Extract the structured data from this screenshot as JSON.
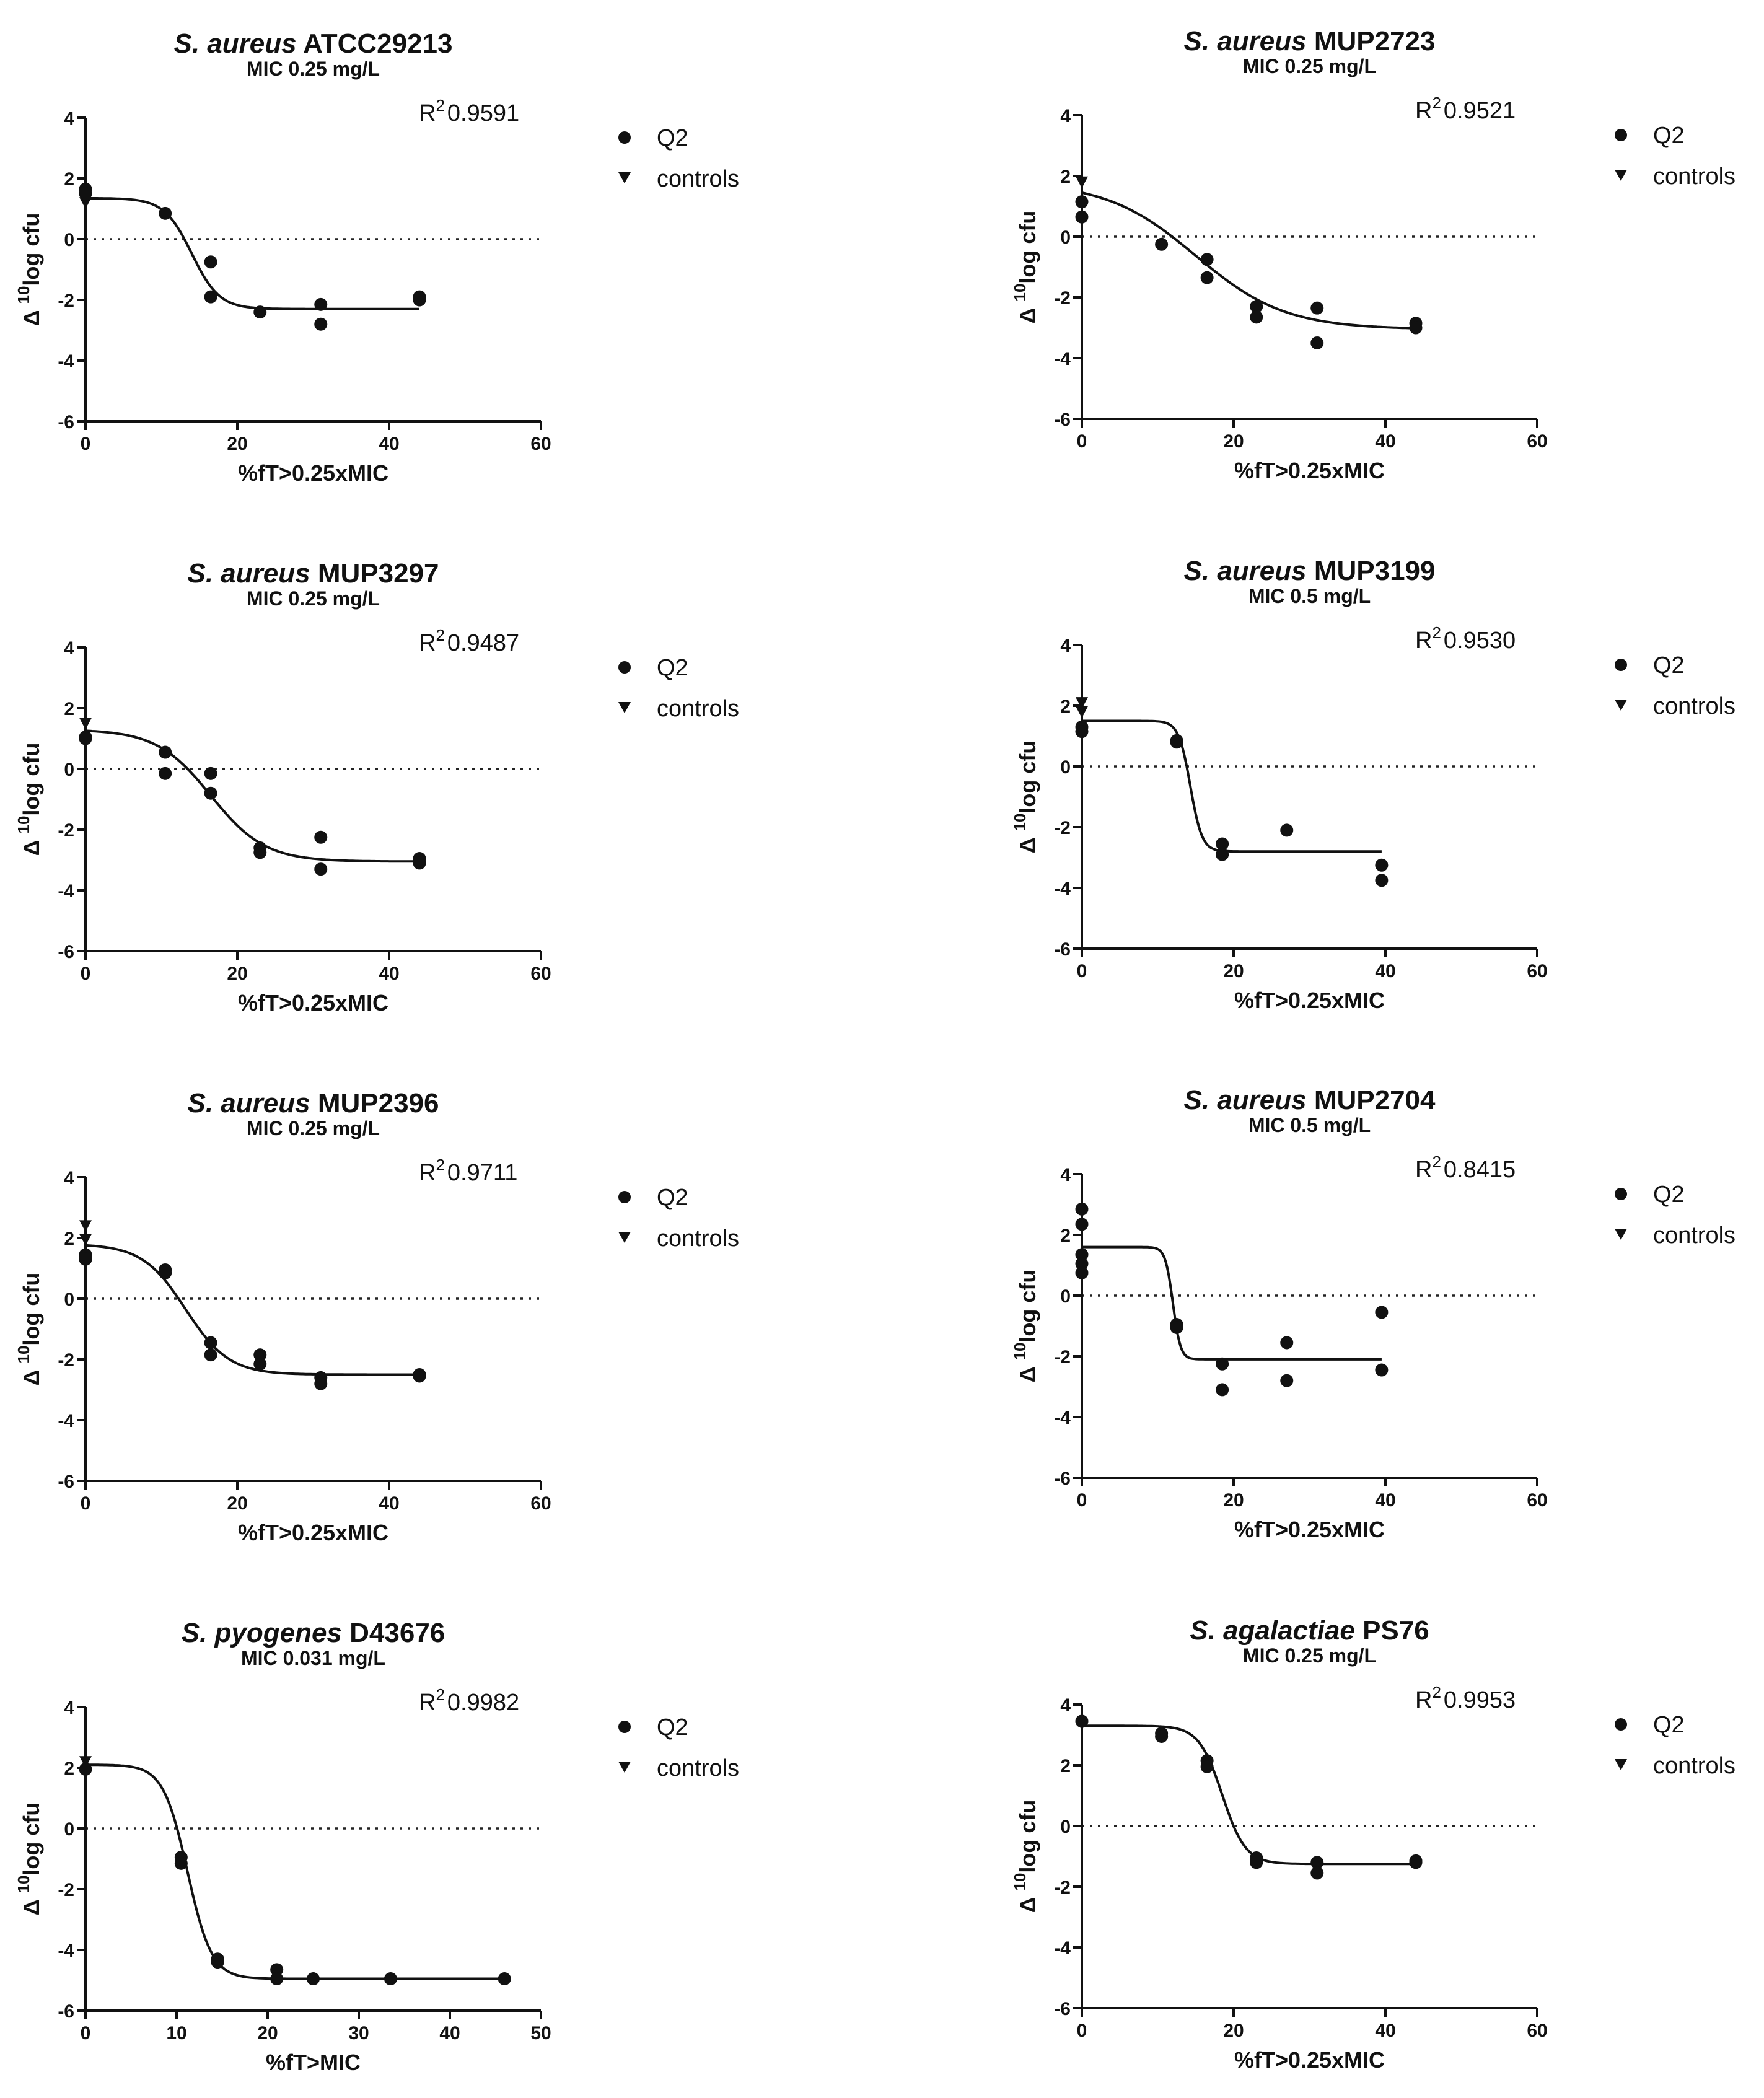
{
  "figure": {
    "legend": {
      "q2_label": "Q2",
      "controls_label": "controls"
    },
    "r2_prefix": "R",
    "r2_sup": "2"
  },
  "chart_data": [
    {
      "type": "scatter",
      "title_italic": "S. aureus",
      "title_rest": "ATCC29213",
      "subtitle": "MIC 0.25 mg/L",
      "xlabel": "%fT>0.25xMIC",
      "ylabel_prefix": "Δ ",
      "ylabel_sup": "10",
      "ylabel_rest": "log cfu",
      "xlim": [
        0,
        60
      ],
      "xticks": [
        0,
        20,
        40,
        60
      ],
      "ylim": [
        -6,
        4
      ],
      "yticks": [
        -6,
        -4,
        -2,
        0,
        2,
        4
      ],
      "r2": "0.9591",
      "controls": [
        [
          0,
          1.2
        ]
      ],
      "points": [
        [
          0,
          1.65
        ],
        [
          0,
          1.5
        ],
        [
          10.5,
          0.85
        ],
        [
          16.5,
          -0.75
        ],
        [
          16.5,
          -1.9
        ],
        [
          23,
          -2.4
        ],
        [
          31,
          -2.15
        ],
        [
          31,
          -2.8
        ],
        [
          44,
          -1.9
        ],
        [
          44,
          -2.0
        ]
      ],
      "curve": {
        "top": 1.35,
        "bottom": -2.3,
        "mid": 14.0,
        "slope": 0.55,
        "xmax": 44
      }
    },
    {
      "type": "scatter",
      "title_italic": "S. aureus",
      "title_rest": "MUP2723",
      "subtitle": "MIC 0.25 mg/L",
      "xlabel": "%fT>0.25xMIC",
      "ylabel_prefix": "Δ ",
      "ylabel_sup": "10",
      "ylabel_rest": "log cfu",
      "xlim": [
        0,
        60
      ],
      "xticks": [
        0,
        20,
        40,
        60
      ],
      "ylim": [
        -6,
        4
      ],
      "yticks": [
        -6,
        -4,
        -2,
        0,
        2,
        4
      ],
      "r2": "0.9521",
      "controls": [
        [
          0,
          1.8
        ]
      ],
      "points": [
        [
          0,
          1.15
        ],
        [
          0,
          0.65
        ],
        [
          10.5,
          -0.25
        ],
        [
          16.5,
          -0.75
        ],
        [
          16.5,
          -1.35
        ],
        [
          23,
          -2.3
        ],
        [
          23,
          -2.65
        ],
        [
          31,
          -2.35
        ],
        [
          31,
          -3.5
        ],
        [
          44,
          -2.85
        ],
        [
          44,
          -3.0
        ]
      ],
      "curve": {
        "top": 1.8,
        "bottom": -3.05,
        "mid": 15.0,
        "slope": 0.17,
        "xmax": 44
      }
    },
    {
      "type": "scatter",
      "title_italic": "S. aureus",
      "title_rest": "MUP3297",
      "subtitle": "MIC 0.25 mg/L",
      "xlabel": "%fT>0.25xMIC",
      "ylabel_prefix": "Δ ",
      "ylabel_sup": "10",
      "ylabel_rest": "log cfu",
      "xlim": [
        0,
        60
      ],
      "xticks": [
        0,
        20,
        40,
        60
      ],
      "ylim": [
        -6,
        4
      ],
      "yticks": [
        -6,
        -4,
        -2,
        0,
        2,
        4
      ],
      "r2": "0.9487",
      "controls": [
        [
          0,
          1.5
        ]
      ],
      "points": [
        [
          0,
          1.05
        ],
        [
          0,
          1.0
        ],
        [
          10.5,
          0.55
        ],
        [
          10.5,
          -0.15
        ],
        [
          16.5,
          -0.15
        ],
        [
          16.5,
          -0.8
        ],
        [
          23,
          -2.6
        ],
        [
          23,
          -2.75
        ],
        [
          31,
          -2.25
        ],
        [
          31,
          -3.3
        ],
        [
          44,
          -2.95
        ],
        [
          44,
          -3.1
        ]
      ],
      "curve": {
        "top": 1.3,
        "bottom": -3.05,
        "mid": 16.5,
        "slope": 0.28,
        "xmax": 44
      }
    },
    {
      "type": "scatter",
      "title_italic": "S. aureus",
      "title_rest": "MUP3199",
      "subtitle": "MIC 0.5 mg/L",
      "xlabel": "%fT>0.25xMIC",
      "ylabel_prefix": "Δ ",
      "ylabel_sup": "10",
      "ylabel_rest": "log cfu",
      "xlim": [
        0,
        60
      ],
      "xticks": [
        0,
        20,
        40,
        60
      ],
      "ylim": [
        -6,
        4
      ],
      "yticks": [
        -6,
        -4,
        -2,
        0,
        2,
        4
      ],
      "r2": "0.9530",
      "controls": [
        [
          0,
          2.1
        ],
        [
          0,
          1.8
        ]
      ],
      "points": [
        [
          0,
          1.3
        ],
        [
          0,
          1.15
        ],
        [
          12.5,
          0.85
        ],
        [
          12.5,
          0.8
        ],
        [
          18.5,
          -2.55
        ],
        [
          18.5,
          -2.9
        ],
        [
          27,
          -2.1
        ],
        [
          39.5,
          -3.25
        ],
        [
          39.5,
          -3.75
        ]
      ],
      "curve": {
        "top": 1.5,
        "bottom": -2.8,
        "mid": 14.3,
        "slope": 1.3,
        "xmax": 39.5
      }
    },
    {
      "type": "scatter",
      "title_italic": "S. aureus",
      "title_rest": "MUP2396",
      "subtitle": "MIC 0.25 mg/L",
      "xlabel": "%fT>0.25xMIC",
      "ylabel_prefix": "Δ ",
      "ylabel_sup": "10",
      "ylabel_rest": "log cfu",
      "xlim": [
        0,
        60
      ],
      "xticks": [
        0,
        20,
        40,
        60
      ],
      "ylim": [
        -6,
        4
      ],
      "yticks": [
        -6,
        -4,
        -2,
        0,
        2,
        4
      ],
      "r2": "0.9711",
      "controls": [
        [
          0,
          2.4
        ],
        [
          0,
          1.95
        ]
      ],
      "points": [
        [
          0,
          1.45
        ],
        [
          0,
          1.3
        ],
        [
          10.5,
          0.95
        ],
        [
          10.5,
          0.85
        ],
        [
          16.5,
          -1.45
        ],
        [
          16.5,
          -1.85
        ],
        [
          23,
          -1.85
        ],
        [
          23,
          -2.15
        ],
        [
          31,
          -2.6
        ],
        [
          31,
          -2.8
        ],
        [
          44,
          -2.5
        ],
        [
          44,
          -2.55
        ]
      ],
      "curve": {
        "top": 1.8,
        "bottom": -2.5,
        "mid": 13.2,
        "slope": 0.35,
        "xmax": 44
      }
    },
    {
      "type": "scatter",
      "title_italic": "S. aureus",
      "title_rest": "MUP2704",
      "subtitle": "MIC 0.5 mg/L",
      "xlabel": "%fT>0.25xMIC",
      "ylabel_prefix": "Δ ",
      "ylabel_sup": "10",
      "ylabel_rest": "log cfu",
      "xlim": [
        0,
        60
      ],
      "xticks": [
        0,
        20,
        40,
        60
      ],
      "ylim": [
        -6,
        4
      ],
      "yticks": [
        -6,
        -4,
        -2,
        0,
        2,
        4
      ],
      "r2": "0.8415",
      "controls": [],
      "points": [
        [
          0,
          2.85
        ],
        [
          0,
          2.35
        ],
        [
          0,
          1.35
        ],
        [
          0,
          1.05
        ],
        [
          0,
          0.75
        ],
        [
          12.5,
          -0.95
        ],
        [
          12.5,
          -1.05
        ],
        [
          18.5,
          -2.25
        ],
        [
          18.5,
          -3.1
        ],
        [
          27,
          -1.55
        ],
        [
          27,
          -2.8
        ],
        [
          39.5,
          -0.55
        ],
        [
          39.5,
          -2.45
        ]
      ],
      "curve": {
        "top": 1.6,
        "bottom": -2.1,
        "mid": 12.0,
        "slope": 2.0,
        "xmax": 39.5
      }
    },
    {
      "type": "scatter",
      "title_italic": "S. pyogenes",
      "title_rest": "D43676",
      "subtitle": "MIC 0.031 mg/L",
      "xlabel": "%fT>MIC",
      "ylabel_prefix": "Δ ",
      "ylabel_sup": "10",
      "ylabel_rest": "log cfu",
      "xlim": [
        0,
        50
      ],
      "xticks": [
        0,
        10,
        20,
        30,
        40,
        50
      ],
      "ylim": [
        -6,
        4
      ],
      "yticks": [
        -6,
        -4,
        -2,
        0,
        2,
        4
      ],
      "r2": "0.9982",
      "controls": [
        [
          0,
          2.2
        ]
      ],
      "points": [
        [
          0,
          1.95
        ],
        [
          10.5,
          -0.95
        ],
        [
          10.5,
          -1.15
        ],
        [
          14.5,
          -4.3
        ],
        [
          14.5,
          -4.4
        ],
        [
          21,
          -4.65
        ],
        [
          21,
          -4.95
        ],
        [
          25,
          -4.95
        ],
        [
          33.5,
          -4.95
        ],
        [
          46,
          -4.95
        ]
      ],
      "curve": {
        "top": 2.1,
        "bottom": -4.95,
        "mid": 11.2,
        "slope": 0.75,
        "xmax": 46
      }
    },
    {
      "type": "scatter",
      "title_italic": "S. agalactiae",
      "title_rest": "PS76",
      "subtitle": "MIC 0.25 mg/L",
      "xlabel": "%fT>0.25xMIC",
      "ylabel_prefix": "Δ ",
      "ylabel_sup": "10",
      "ylabel_rest": "log cfu",
      "xlim": [
        0,
        60
      ],
      "xticks": [
        0,
        20,
        40,
        60
      ],
      "ylim": [
        -6,
        4
      ],
      "yticks": [
        -6,
        -4,
        -2,
        0,
        2,
        4
      ],
      "r2": "0.9953",
      "controls": [
        [
          0,
          3.35
        ]
      ],
      "points": [
        [
          0,
          3.45
        ],
        [
          10.5,
          3.05
        ],
        [
          10.5,
          2.95
        ],
        [
          16.5,
          2.15
        ],
        [
          16.5,
          1.95
        ],
        [
          23,
          -1.05
        ],
        [
          23,
          -1.2
        ],
        [
          31,
          -1.2
        ],
        [
          31,
          -1.55
        ],
        [
          44,
          -1.15
        ],
        [
          44,
          -1.2
        ]
      ],
      "curve": {
        "top": 3.3,
        "bottom": -1.25,
        "mid": 18.5,
        "slope": 0.65,
        "xmax": 44
      }
    }
  ]
}
